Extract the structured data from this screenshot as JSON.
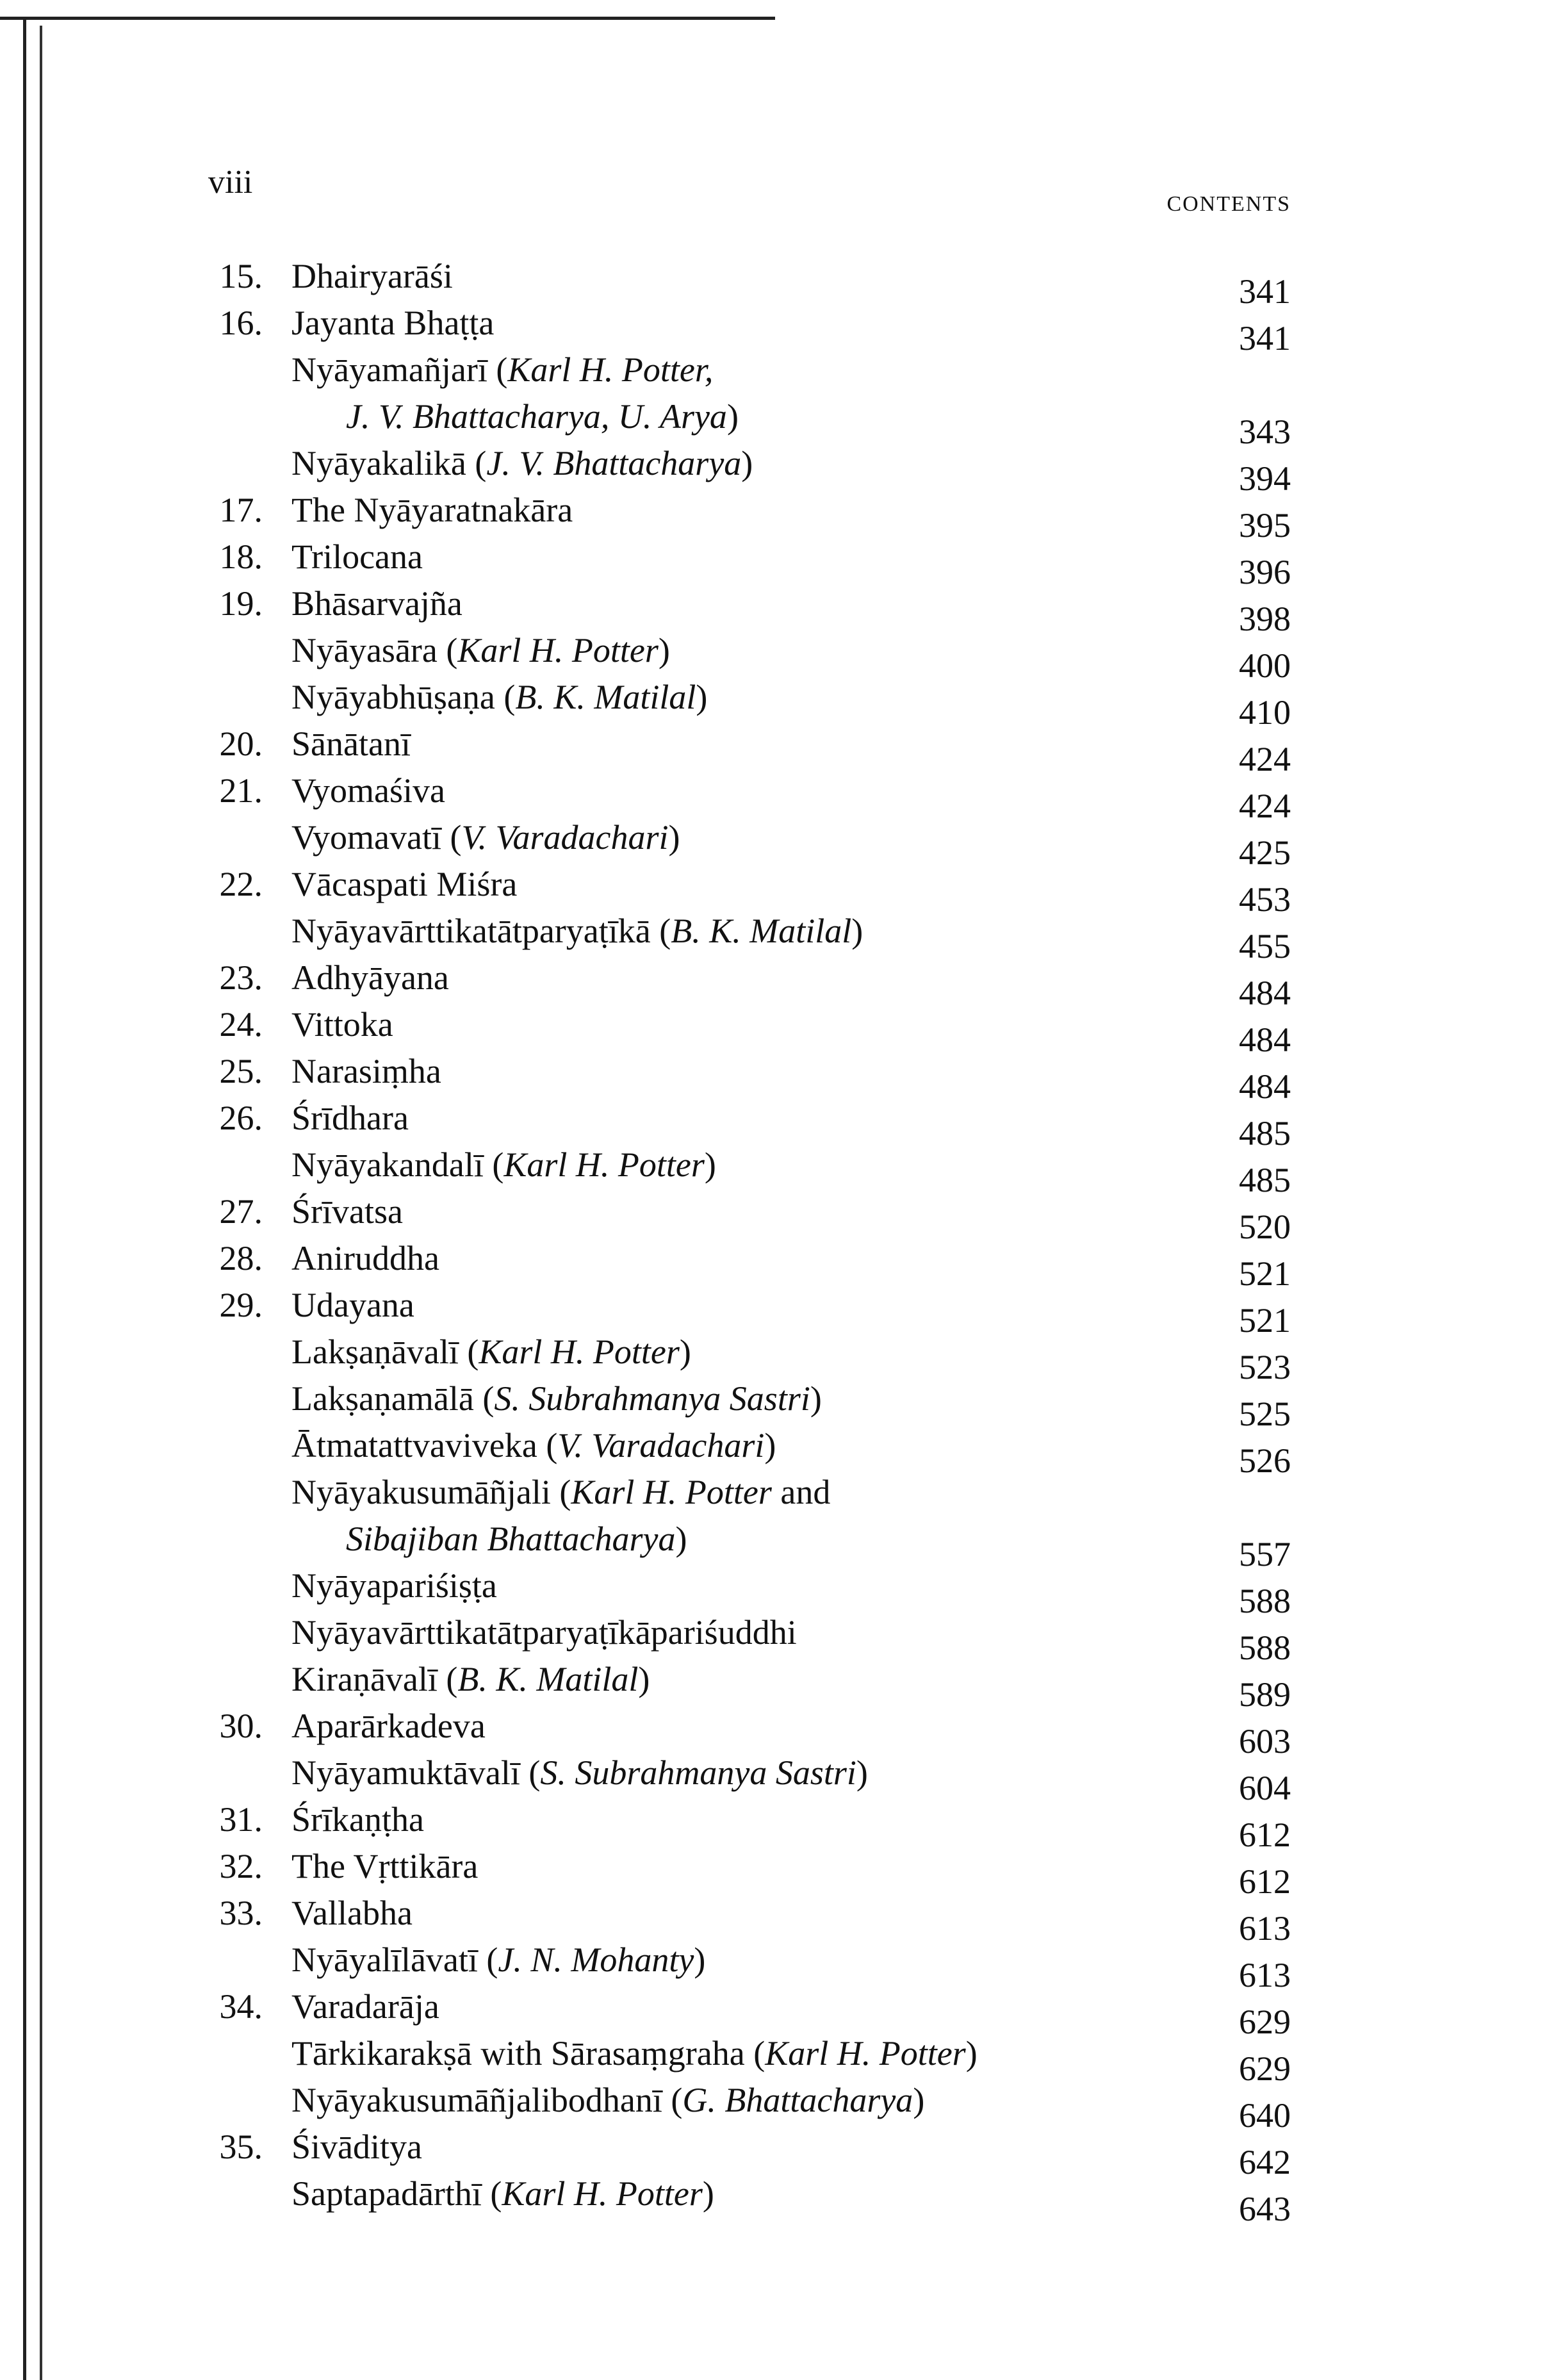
{
  "header": {
    "folio": "viii",
    "running_head": "CONTENTS"
  },
  "lines": [
    {
      "num": "15.",
      "seg": [
        {
          "t": "Dhairyarāśi"
        }
      ],
      "page": "341"
    },
    {
      "num": "16.",
      "seg": [
        {
          "t": "Jayanta Bhaṭṭa"
        }
      ],
      "page": "341"
    },
    {
      "seg": [
        {
          "t": "Nyāyamañjarī  ("
        },
        {
          "t": "Karl H. Potter,",
          "i": true
        }
      ]
    },
    {
      "cont": true,
      "seg": [
        {
          "t": "J. V. Bhattacharya, U. Arya",
          "i": true
        },
        {
          "t": ")"
        }
      ],
      "page": "343"
    },
    {
      "seg": [
        {
          "t": "Nyāyakalikā ("
        },
        {
          "t": "J. V. Bhattacharya",
          "i": true
        },
        {
          "t": ")"
        }
      ],
      "page": "394"
    },
    {
      "num": "17.",
      "seg": [
        {
          "t": "The Nyāyaratnakāra"
        }
      ],
      "page": "395"
    },
    {
      "num": "18.",
      "seg": [
        {
          "t": "Trilocana"
        }
      ],
      "page": "396"
    },
    {
      "num": "19.",
      "seg": [
        {
          "t": "Bhāsarvajña"
        }
      ],
      "page": "398"
    },
    {
      "seg": [
        {
          "t": "Nyāyasāra ("
        },
        {
          "t": "Karl H. Potter",
          "i": true
        },
        {
          "t": ")"
        }
      ],
      "page": "400"
    },
    {
      "seg": [
        {
          "t": "Nyāyabhūṣaṇa ("
        },
        {
          "t": "B. K. Matilal",
          "i": true
        },
        {
          "t": ")"
        }
      ],
      "page": "410"
    },
    {
      "num": "20.",
      "seg": [
        {
          "t": "Sānātanī"
        }
      ],
      "page": "424"
    },
    {
      "num": "21.",
      "seg": [
        {
          "t": "Vyomaśiva"
        }
      ],
      "page": "424"
    },
    {
      "seg": [
        {
          "t": "Vyomavatī ("
        },
        {
          "t": "V. Varadachari",
          "i": true
        },
        {
          "t": ")"
        }
      ],
      "page": "425"
    },
    {
      "num": "22.",
      "seg": [
        {
          "t": "Vācaspati Miśra"
        }
      ],
      "page": "453"
    },
    {
      "seg": [
        {
          "t": "Nyāyavārttikatātparyaṭīkā ("
        },
        {
          "t": "B. K. Matilal",
          "i": true
        },
        {
          "t": ")"
        }
      ],
      "page": "455"
    },
    {
      "num": "23.",
      "seg": [
        {
          "t": "Adhyāyana"
        }
      ],
      "page": "484"
    },
    {
      "num": "24.",
      "seg": [
        {
          "t": "Vittoka"
        }
      ],
      "page": "484"
    },
    {
      "num": "25.",
      "seg": [
        {
          "t": "Narasiṃha"
        }
      ],
      "page": "484"
    },
    {
      "num": "26.",
      "seg": [
        {
          "t": "Śrīdhara"
        }
      ],
      "page": "485"
    },
    {
      "seg": [
        {
          "t": "Nyāyakandalī ("
        },
        {
          "t": "Karl H. Potter",
          "i": true
        },
        {
          "t": ")"
        }
      ],
      "page": "485"
    },
    {
      "num": "27.",
      "seg": [
        {
          "t": "Śrīvatsa"
        }
      ],
      "page": "520"
    },
    {
      "num": "28.",
      "seg": [
        {
          "t": "Aniruddha"
        }
      ],
      "page": "521"
    },
    {
      "num": "29.",
      "seg": [
        {
          "t": "Udayana"
        }
      ],
      "page": "521"
    },
    {
      "seg": [
        {
          "t": "Lakṣaṇāvalī ("
        },
        {
          "t": "Karl H. Potter",
          "i": true
        },
        {
          "t": ")"
        }
      ],
      "page": "523"
    },
    {
      "seg": [
        {
          "t": "Lakṣaṇamālā ("
        },
        {
          "t": "S. Subrahmanya Sastri",
          "i": true
        },
        {
          "t": ")"
        }
      ],
      "page": "525"
    },
    {
      "seg": [
        {
          "t": "Ātmatattvaviveka ("
        },
        {
          "t": "V. Varadachari",
          "i": true
        },
        {
          "t": ")"
        }
      ],
      "page": "526"
    },
    {
      "seg": [
        {
          "t": "Nyāyakusumāñjali ("
        },
        {
          "t": "Karl H. Potter",
          "i": true
        },
        {
          "t": " and"
        }
      ]
    },
    {
      "cont": true,
      "seg": [
        {
          "t": "Sibajiban Bhattacharya",
          "i": true
        },
        {
          "t": ")"
        }
      ],
      "page": "557"
    },
    {
      "seg": [
        {
          "t": "Nyāyapariśiṣṭa"
        }
      ],
      "page": "588"
    },
    {
      "seg": [
        {
          "t": "Nyāyavārttikatātparyaṭīkāpariśuddhi"
        }
      ],
      "page": "588"
    },
    {
      "seg": [
        {
          "t": "Kiraṇāvalī ("
        },
        {
          "t": "B. K. Matilal",
          "i": true
        },
        {
          "t": ")"
        }
      ],
      "page": "589"
    },
    {
      "num": "30.",
      "seg": [
        {
          "t": "Aparārkadeva"
        }
      ],
      "page": "603"
    },
    {
      "seg": [
        {
          "t": "Nyāyamuktāvalī ("
        },
        {
          "t": "S. Subrahmanya Sastri",
          "i": true
        },
        {
          "t": ")"
        }
      ],
      "page": "604"
    },
    {
      "num": "31.",
      "seg": [
        {
          "t": "Śrīkaṇṭha"
        }
      ],
      "page": "612"
    },
    {
      "num": "32.",
      "seg": [
        {
          "t": "The Vṛttikāra"
        }
      ],
      "page": "612"
    },
    {
      "num": "33.",
      "seg": [
        {
          "t": "Vallabha"
        }
      ],
      "page": "613"
    },
    {
      "seg": [
        {
          "t": "Nyāyalīlāvatī ("
        },
        {
          "t": "J. N. Mohanty",
          "i": true
        },
        {
          "t": ")"
        }
      ],
      "page": "613"
    },
    {
      "num": "34.",
      "seg": [
        {
          "t": "Varadarāja"
        }
      ],
      "page": "629"
    },
    {
      "seg": [
        {
          "t": "Tārkikarakṣā with Sārasaṃgraha ("
        },
        {
          "t": "Karl H. Potter",
          "i": true
        },
        {
          "t": ")"
        }
      ],
      "page": "629"
    },
    {
      "seg": [
        {
          "t": "Nyāyakusumāñjalibodhanī ("
        },
        {
          "t": "G. Bhattacharya",
          "i": true
        },
        {
          "t": ")"
        }
      ],
      "page": "640"
    },
    {
      "num": "35.",
      "seg": [
        {
          "t": "Śivāditya"
        }
      ],
      "page": "642"
    },
    {
      "seg": [
        {
          "t": "Saptapadārthī ("
        },
        {
          "t": "Karl H. Potter",
          "i": true
        },
        {
          "t": ")"
        }
      ],
      "page": "643"
    }
  ]
}
